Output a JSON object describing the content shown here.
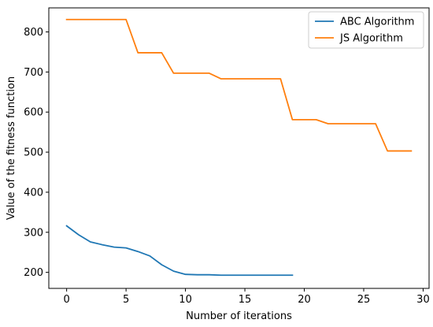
{
  "chart_data": {
    "type": "line",
    "title": "",
    "xlabel": "Number of iterations",
    "ylabel": "Value of the fitness function",
    "xlim": [
      -1.5,
      30.5
    ],
    "ylim": [
      160,
      860
    ],
    "xticks": [
      0,
      5,
      10,
      15,
      20,
      25,
      30
    ],
    "yticks": [
      200,
      300,
      400,
      500,
      600,
      700,
      800
    ],
    "grid": false,
    "legend_position": "top-right",
    "series": [
      {
        "name": "ABC Algorithm",
        "color": "#1f77b4",
        "x": [
          0,
          1,
          2,
          3,
          4,
          5,
          6,
          7,
          8,
          9,
          10,
          11,
          12,
          13,
          14,
          15,
          16,
          17,
          18,
          19
        ],
        "values": [
          316,
          294,
          276,
          269,
          263,
          261,
          252,
          241,
          219,
          203,
          195,
          194,
          194,
          193,
          193,
          193,
          193,
          193,
          193,
          193
        ]
      },
      {
        "name": "JS Algorithm",
        "color": "#ff7f0e",
        "x": [
          0,
          1,
          2,
          3,
          4,
          5,
          6,
          7,
          8,
          9,
          10,
          11,
          12,
          13,
          14,
          15,
          16,
          17,
          18,
          19,
          20,
          21,
          22,
          23,
          24,
          25,
          26,
          27,
          28,
          29
        ],
        "values": [
          831,
          831,
          831,
          831,
          831,
          831,
          748,
          748,
          748,
          697,
          697,
          697,
          697,
          683,
          683,
          683,
          683,
          683,
          683,
          581,
          581,
          581,
          571,
          571,
          571,
          571,
          571,
          503,
          503,
          503
        ]
      }
    ]
  }
}
